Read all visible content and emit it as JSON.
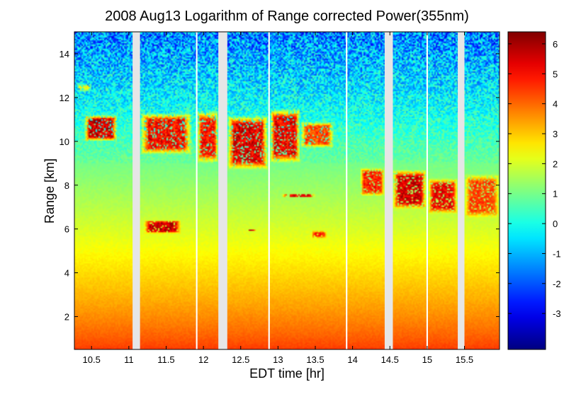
{
  "chart_data": {
    "type": "heatmap",
    "title": "2008 Aug13  Logarithm of Range corrected Power(355nm)",
    "xlabel": "EDT time [hr]",
    "ylabel": "Range [km]",
    "xlim": [
      10.27,
      15.97
    ],
    "ylim": [
      0.5,
      15.0
    ],
    "xticks": [
      10.5,
      11,
      11.5,
      12,
      12.5,
      13,
      13.5,
      14,
      14.5,
      15,
      15.5
    ],
    "xtick_labels": [
      "10.5",
      "11",
      "11.5",
      "12",
      "12.5",
      "13",
      "13.5",
      "14",
      "14.5",
      "15",
      "15.5"
    ],
    "yticks": [
      2,
      4,
      6,
      8,
      10,
      12,
      14
    ],
    "ytick_labels": [
      "2",
      "4",
      "6",
      "8",
      "10",
      "12",
      "14"
    ],
    "colorbar": {
      "colormap": "jet",
      "clim": [
        -4.2,
        6.4
      ],
      "ticks": [
        6,
        5,
        4,
        3,
        2,
        1,
        0,
        -1,
        -2,
        -3
      ],
      "tick_labels": [
        "6",
        "5",
        "4",
        "3",
        "2",
        "1",
        "0",
        "-1",
        "-2",
        "-3"
      ]
    },
    "data_gaps": [
      {
        "start": 11.05,
        "end": 11.15
      },
      {
        "start": 11.9,
        "end": 11.92
      },
      {
        "start": 12.2,
        "end": 12.32
      },
      {
        "start": 12.87,
        "end": 12.89
      },
      {
        "start": 13.91,
        "end": 13.93
      },
      {
        "start": 14.43,
        "end": 14.54
      },
      {
        "start": 14.99,
        "end": 15.01
      },
      {
        "start": 15.41,
        "end": 15.5
      }
    ],
    "aerosol_layer": {
      "range_bottom_km": 0.5,
      "range_top_km": 9.0,
      "log_power_at_bottom": 4.5,
      "log_power_at_top": 1.0
    },
    "free_troposphere": {
      "log_power_at_9km": 0.9,
      "log_power_at_15km": -1.5
    },
    "cloud_layers": [
      {
        "time_start": 10.4,
        "time_end": 10.85,
        "range_bottom_km": 10.0,
        "range_top_km": 11.2,
        "log_power": 6.0
      },
      {
        "time_start": 11.15,
        "time_end": 11.85,
        "range_bottom_km": 9.4,
        "range_top_km": 11.3,
        "log_power": 5.4
      },
      {
        "time_start": 11.92,
        "time_end": 12.2,
        "range_bottom_km": 9.0,
        "range_top_km": 11.4,
        "log_power": 5.2
      },
      {
        "time_start": 12.32,
        "time_end": 12.87,
        "range_bottom_km": 8.7,
        "range_top_km": 11.2,
        "log_power": 5.8
      },
      {
        "time_start": 12.89,
        "time_end": 13.3,
        "range_bottom_km": 9.0,
        "range_top_km": 11.5,
        "log_power": 5.6
      },
      {
        "time_start": 13.3,
        "time_end": 13.75,
        "range_bottom_km": 9.7,
        "range_top_km": 10.9,
        "log_power": 4.6
      },
      {
        "time_start": 14.1,
        "time_end": 14.43,
        "range_bottom_km": 7.5,
        "range_top_km": 8.8,
        "log_power": 5.0
      },
      {
        "time_start": 14.54,
        "time_end": 14.99,
        "range_bottom_km": 6.9,
        "range_top_km": 8.7,
        "log_power": 5.8
      },
      {
        "time_start": 15.01,
        "time_end": 15.41,
        "range_bottom_km": 6.7,
        "range_top_km": 8.3,
        "log_power": 5.5
      },
      {
        "time_start": 15.5,
        "time_end": 15.97,
        "range_bottom_km": 6.5,
        "range_top_km": 8.5,
        "log_power": 4.6
      },
      {
        "time_start": 11.2,
        "time_end": 11.7,
        "range_bottom_km": 5.8,
        "range_top_km": 6.4,
        "log_power": 6.0
      },
      {
        "time_start": 12.6,
        "time_end": 12.7,
        "range_bottom_km": 5.9,
        "range_top_km": 6.0,
        "log_power": 5.5
      },
      {
        "time_start": 13.05,
        "time_end": 13.5,
        "range_bottom_km": 7.45,
        "range_top_km": 7.6,
        "log_power": 5.5
      },
      {
        "time_start": 13.45,
        "time_end": 13.65,
        "range_bottom_km": 5.6,
        "range_top_km": 5.9,
        "log_power": 5.0
      },
      {
        "time_start": 10.3,
        "time_end": 10.5,
        "range_bottom_km": 12.3,
        "range_top_km": 12.6,
        "log_power": 2.4
      }
    ]
  }
}
